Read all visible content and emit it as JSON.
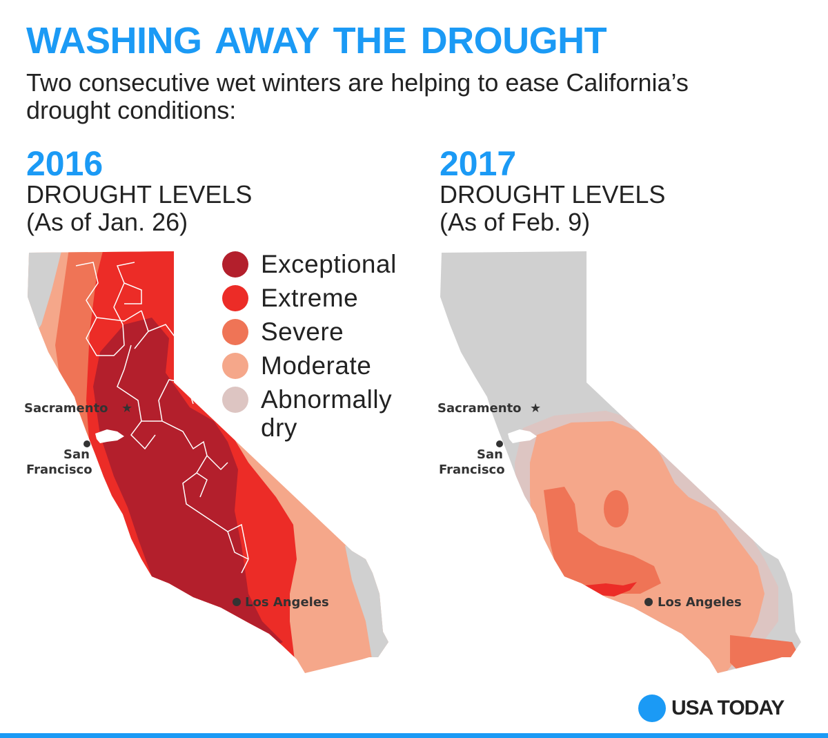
{
  "headline": "WASHING AWAY  THE DROUGHT",
  "subhead": "Two consecutive wet winters are helping to ease California’s drought conditions:",
  "panels": [
    {
      "year": "2016",
      "title": "DROUGHT LEVELS",
      "date": "(As of Jan. 26)"
    },
    {
      "year": "2017",
      "title": "DROUGHT LEVELS",
      "date": "(As of Feb. 9)"
    }
  ],
  "legend": [
    {
      "label": "Exceptional",
      "color": "#b31f2c"
    },
    {
      "label": "Extreme",
      "color": "#ec2c27"
    },
    {
      "label": "Severe",
      "color": "#ef7456"
    },
    {
      "label": "Moderate",
      "color": "#f5a78a"
    },
    {
      "label": "Abnormally dry",
      "color": "#ddc5c2"
    }
  ],
  "cities": {
    "sacramento": "Sacramento",
    "san_francisco_line1": "San",
    "san_francisco_line2": "Francisco",
    "los_angeles": "Los Angeles"
  },
  "colors": {
    "accent": "#1b9af5",
    "no_drought": "#d0d0d0"
  },
  "logo": "USA TODAY"
}
